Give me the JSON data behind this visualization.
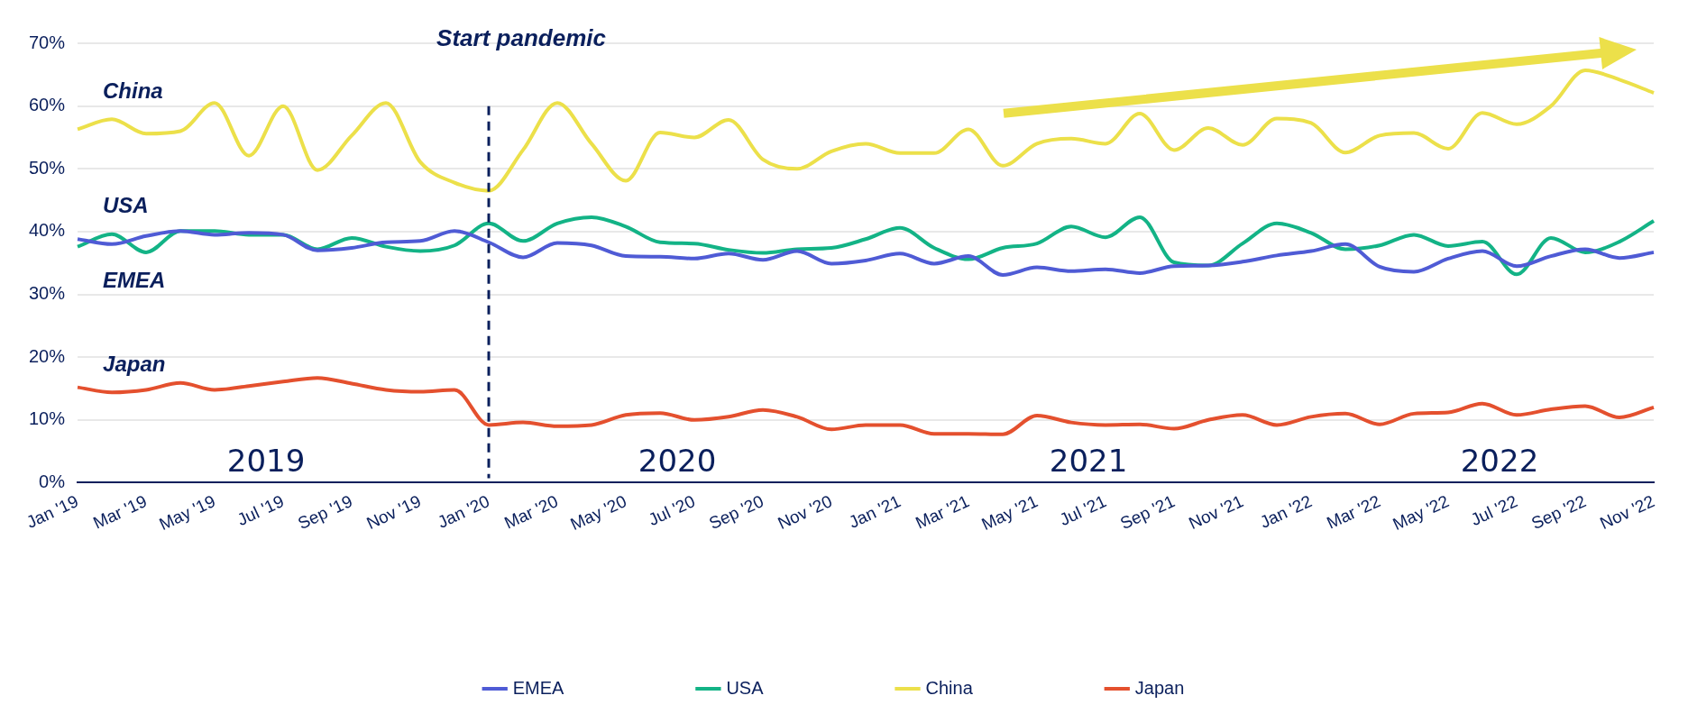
{
  "chart_data": {
    "type": "line",
    "categories": [
      "Jan '19",
      null,
      "Mar '19",
      null,
      "May '19",
      null,
      "Jul '19",
      null,
      "Sep '19",
      null,
      "Nov '19",
      null,
      "Jan '20",
      null,
      "Mar '20",
      null,
      "May '20",
      null,
      "Jul '20",
      null,
      "Sep '20",
      null,
      "Nov '20",
      null,
      "Jan '21",
      null,
      "Mar '21",
      null,
      "May '21",
      null,
      "Jul '21",
      null,
      "Sep '21",
      null,
      "Nov '21",
      null,
      "Jan '22",
      null,
      "Mar '22",
      null,
      "May '22",
      null,
      "Jul '22",
      null,
      "Sep '22",
      null,
      "Nov '22"
    ],
    "series": [
      {
        "name": "EMEA",
        "color": "#4f5bd5",
        "values": [
          38.8,
          38.0,
          39.3,
          40.1,
          39.5,
          39.8,
          39.5,
          37.0,
          37.4,
          38.3,
          38.5,
          40.1,
          38.3,
          35.9,
          38.2,
          37.8,
          36.1,
          36.0,
          35.7,
          36.5,
          35.5,
          36.9,
          34.9,
          35.4,
          36.5,
          34.9,
          36.1,
          33.1,
          34.3,
          33.7,
          34.0,
          33.4,
          34.5,
          34.6,
          35.2,
          36.2,
          36.9,
          38.0,
          34.4,
          33.6,
          35.7,
          36.9,
          34.5,
          36.1,
          37.2,
          35.8,
          36.7
        ]
      },
      {
        "name": "USA",
        "color": "#13b386",
        "values": [
          37.6,
          39.6,
          36.7,
          40.1,
          40.1,
          39.5,
          39.5,
          37.2,
          39.0,
          37.6,
          36.9,
          37.8,
          41.3,
          38.5,
          41.3,
          42.3,
          40.8,
          38.3,
          38.1,
          37.1,
          36.6,
          37.2,
          37.4,
          38.8,
          40.6,
          37.4,
          35.6,
          37.4,
          38.1,
          40.8,
          39.1,
          42.3,
          35.1,
          34.6,
          38.1,
          41.3,
          39.8,
          37.2,
          37.8,
          39.5,
          37.7,
          38.4,
          33.2,
          39.0,
          36.7,
          38.4,
          41.7
        ]
      },
      {
        "name": "China",
        "color": "#ece04a",
        "values": [
          56.3,
          57.9,
          55.6,
          56.0,
          60.5,
          52.1,
          60.0,
          49.8,
          55.3,
          60.5,
          51.1,
          47.8,
          46.5,
          53.0,
          60.5,
          54.0,
          48.1,
          55.8,
          55.0,
          57.8,
          51.5,
          50.0,
          52.8,
          54.0,
          52.5,
          52.5,
          56.3,
          50.5,
          54.0,
          54.8,
          54.0,
          58.8,
          53.0,
          56.5,
          53.8,
          58.0,
          57.3,
          52.6,
          55.3,
          55.7,
          53.2,
          58.9,
          57.1,
          60.0,
          65.7,
          64.2,
          62.1
        ]
      },
      {
        "name": "Japan",
        "color": "#e4502e",
        "values": [
          15.2,
          14.4,
          14.8,
          15.9,
          14.8,
          15.4,
          16.1,
          16.7,
          15.8,
          14.8,
          14.5,
          14.8,
          9.2,
          9.6,
          9.0,
          9.2,
          10.8,
          11.1,
          10.0,
          10.5,
          11.6,
          10.5,
          8.5,
          9.2,
          9.2,
          7.8,
          7.8,
          7.7,
          10.7,
          9.6,
          9.2,
          9.3,
          8.6,
          10.0,
          10.8,
          9.2,
          10.5,
          11.0,
          9.3,
          11.0,
          11.2,
          12.6,
          10.8,
          11.7,
          12.2,
          10.4,
          12.0
        ]
      }
    ],
    "ylim": [
      0,
      70
    ],
    "yticks": [
      {
        "value": 0,
        "label": "0%"
      },
      {
        "value": 10,
        "label": "10%"
      },
      {
        "value": 20,
        "label": "20%"
      },
      {
        "value": 30,
        "label": "30%"
      },
      {
        "value": 40,
        "label": "40%"
      },
      {
        "value": 50,
        "label": "50%"
      },
      {
        "value": 60,
        "label": "60%"
      },
      {
        "value": 70,
        "label": "70%"
      }
    ],
    "grid": "y",
    "legend": "bottom",
    "marker": "none",
    "line_style": "solid",
    "ref_lines": [
      {
        "axis": "x",
        "value": "Jan '20",
        "label": "Start pandemic",
        "color": "#0a1f5c",
        "line_style": "dashed"
      }
    ],
    "annotations": [
      "2019",
      "2020",
      "2021",
      "2022"
    ]
  }
}
